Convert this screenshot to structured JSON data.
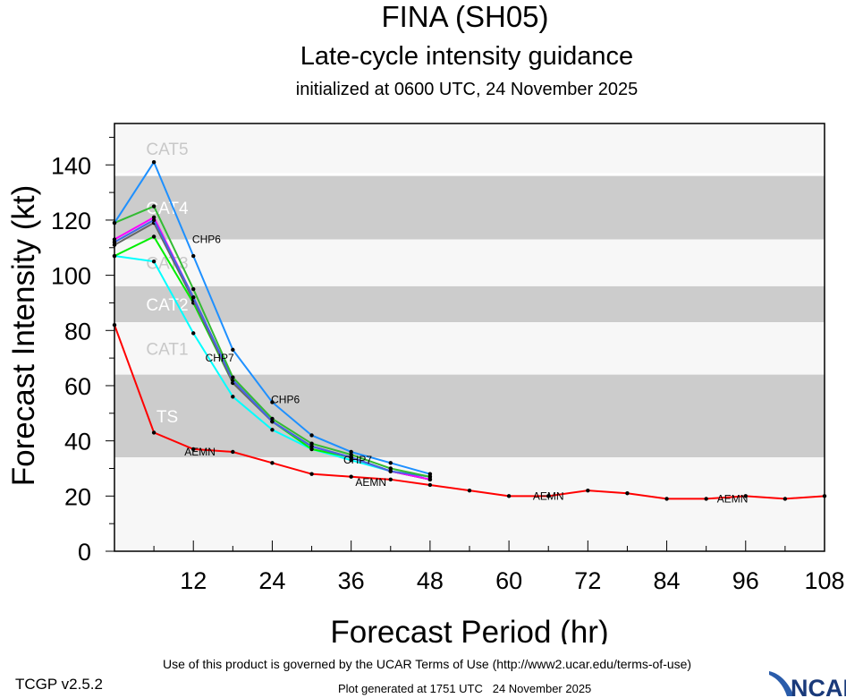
{
  "chart_data": {
    "type": "line",
    "title": "FINA (SH05)",
    "subtitle": "Late-cycle intensity guidance",
    "subtitle2": "initialized at 0600 UTC, 24 November 2025",
    "xlabel": "Forecast Period (hr)",
    "ylabel": "Forecast Intensity (kt)",
    "xlim": [
      0,
      108
    ],
    "ylim": [
      0,
      155
    ],
    "xticks": [
      12,
      24,
      36,
      48,
      60,
      72,
      84,
      96,
      108
    ],
    "yticks": [
      0,
      20,
      40,
      60,
      80,
      100,
      120,
      140
    ],
    "grid": false,
    "bands": [
      {
        "label": "CAT5",
        "min": 137,
        "max": 155,
        "color": "#f7f7f7"
      },
      {
        "label": "CAT4",
        "min": 113,
        "max": 136,
        "color": "#cccccc"
      },
      {
        "label": "CAT3",
        "min": 96,
        "max": 113,
        "color": "#f7f7f7"
      },
      {
        "label": "CAT2",
        "min": 83,
        "max": 96,
        "color": "#cccccc"
      },
      {
        "label": "CAT1",
        "min": 64,
        "max": 83,
        "color": "#f7f7f7"
      },
      {
        "label": "TS",
        "min": 34,
        "max": 64,
        "color": "#cccccc"
      },
      {
        "label": "",
        "min": 0,
        "max": 34,
        "color": "#f7f7f7"
      }
    ],
    "series": [
      {
        "name": "AEMN",
        "color": "#ff0000",
        "x": [
          0,
          6,
          12,
          18,
          24,
          30,
          36,
          42,
          48,
          54,
          60,
          66,
          72,
          78,
          84,
          90,
          96,
          102,
          108
        ],
        "y": [
          82,
          43,
          37,
          36,
          32,
          28,
          27,
          26,
          24,
          22,
          20,
          20,
          22,
          21,
          19,
          19,
          20,
          19,
          20
        ]
      },
      {
        "name": "",
        "color": "#00ffff",
        "x": [
          0,
          6,
          12,
          18,
          24,
          30,
          36,
          42,
          48
        ],
        "y": [
          107,
          105,
          79,
          56,
          44,
          37,
          33,
          29,
          26
        ]
      },
      {
        "name": "",
        "color": "#00ee00",
        "x": [
          0,
          6,
          12,
          18,
          24,
          30,
          36,
          42,
          48
        ],
        "y": [
          107,
          114,
          90,
          61,
          47,
          37,
          34,
          29,
          26
        ]
      },
      {
        "name": "",
        "color": "#666666",
        "x": [
          0,
          6,
          12,
          18,
          24,
          30,
          36,
          42,
          48
        ],
        "y": [
          111,
          119,
          91,
          61,
          47,
          38,
          34,
          29,
          26
        ]
      },
      {
        "name": "",
        "color": "#ff00ff",
        "x": [
          0,
          6,
          12,
          18,
          24,
          30,
          36,
          42,
          48
        ],
        "y": [
          113,
          121,
          92,
          62,
          47,
          38,
          34,
          29,
          26
        ]
      },
      {
        "name": "",
        "color": "#4169e1",
        "x": [
          0,
          6,
          12,
          18,
          24,
          30,
          36,
          42,
          48
        ],
        "y": [
          112,
          120,
          92,
          62,
          47,
          38,
          34,
          29,
          27
        ]
      },
      {
        "name": "",
        "color": "#33bb33",
        "x": [
          0,
          6,
          12,
          18,
          24,
          30,
          36,
          42,
          48
        ],
        "y": [
          119,
          125,
          95,
          63,
          48,
          39,
          35,
          30,
          27
        ]
      },
      {
        "name": "CHP6",
        "color": "#1e90ff",
        "x": [
          0,
          6,
          12,
          18,
          24,
          30,
          36,
          42,
          48
        ],
        "y": [
          119,
          141,
          107,
          73,
          54,
          42,
          36,
          32,
          28
        ]
      }
    ],
    "annotations": [
      {
        "text": "CHP6",
        "x": 14,
        "y": 113
      },
      {
        "text": "CHP6",
        "x": 26,
        "y": 55
      },
      {
        "text": "CHP7",
        "x": 16,
        "y": 70
      },
      {
        "text": "CHP7",
        "x": 37,
        "y": 33
      },
      {
        "text": "AEMN",
        "x": 13,
        "y": 36
      },
      {
        "text": "AEMN",
        "x": 39,
        "y": 25
      },
      {
        "text": "AEMN",
        "x": 66,
        "y": 20
      },
      {
        "text": "AEMN",
        "x": 94,
        "y": 19
      }
    ]
  },
  "footer": {
    "terms": "Use of this product is governed by the UCAR Terms of Use (http://www2.ucar.edu/terms-of-use)",
    "version": "TCGP v2.5.2",
    "generated": "Plot generated at 1751 UTC   24 November 2025",
    "logo": "NCAR"
  }
}
